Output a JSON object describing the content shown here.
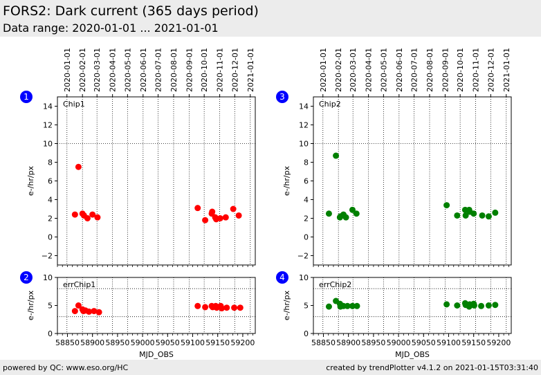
{
  "header": {
    "title": "FORS2: Dark current (365 days period)",
    "subtitle": "Data range: 2020-01-01 ... 2021-01-01"
  },
  "footer": {
    "left": "powered by QC: www.eso.org/HC",
    "right": "created by trendPlotter v4.1.2 on 2021-01-15T03:31:40"
  },
  "colors": {
    "chip1": "#ff0000",
    "chip2": "#008000",
    "badge": "#0000ff",
    "header_bg": "#ececec"
  },
  "chart_data": [
    {
      "type": "scatter",
      "badge": "1",
      "label": "Chip1",
      "ylabel": "e-/hr/px",
      "xlabel": "",
      "color": "#ff0000",
      "xlim": [
        58830,
        59225
      ],
      "ylim": [
        -3,
        15
      ],
      "yticks": [
        -2,
        0,
        2,
        4,
        6,
        8,
        10,
        12,
        14
      ],
      "reference_lines": [
        10
      ],
      "top_axis_dates": [
        "2020-01-01",
        "2020-02-01",
        "2020-03-01",
        "2020-04-01",
        "2020-05-01",
        "2020-06-01",
        "2020-07-01",
        "2020-08-01",
        "2020-09-01",
        "2020-10-01",
        "2020-11-01",
        "2020-12-01",
        "2021-01-01"
      ],
      "top_axis_mjd": [
        58849,
        58880,
        58909,
        58940,
        58970,
        59001,
        59031,
        59062,
        59093,
        59123,
        59154,
        59184,
        59215
      ],
      "points": [
        [
          58865,
          2.4
        ],
        [
          58872,
          7.5
        ],
        [
          58880,
          2.5
        ],
        [
          58883,
          2.3
        ],
        [
          58890,
          2.0
        ],
        [
          58900,
          2.4
        ],
        [
          58910,
          2.1
        ],
        [
          59110,
          3.1
        ],
        [
          59125,
          1.8
        ],
        [
          59138,
          2.5
        ],
        [
          59139,
          2.7
        ],
        [
          59145,
          2.1
        ],
        [
          59147,
          1.9
        ],
        [
          59155,
          2.0
        ],
        [
          59166,
          2.1
        ],
        [
          59181,
          3.0
        ],
        [
          59192,
          2.3
        ]
      ]
    },
    {
      "type": "scatter",
      "badge": "2",
      "label": "errChip1",
      "ylabel": "e-/hr/px",
      "xlabel": "MJD_OBS",
      "color": "#ff0000",
      "xlim": [
        58830,
        59225
      ],
      "ylim": [
        0,
        10
      ],
      "yticks": [
        0,
        5,
        10
      ],
      "reference_lines": [
        3,
        8
      ],
      "xticks": [
        58850,
        58900,
        58950,
        59000,
        59050,
        59100,
        59150,
        59200
      ],
      "xtick_labels": [
        "58850",
        "58900",
        "58950",
        "59000",
        "59050",
        "59100",
        "59150",
        "59200"
      ],
      "points": [
        [
          58865,
          4.0
        ],
        [
          58872,
          5.0
        ],
        [
          58880,
          4.3
        ],
        [
          58882,
          4.0
        ],
        [
          58886,
          4.1
        ],
        [
          58893,
          3.9
        ],
        [
          58903,
          4.0
        ],
        [
          58913,
          3.8
        ],
        [
          59110,
          4.9
        ],
        [
          59125,
          4.7
        ],
        [
          59138,
          4.9
        ],
        [
          59140,
          4.7
        ],
        [
          59146,
          4.9
        ],
        [
          59148,
          4.6
        ],
        [
          59156,
          4.9
        ],
        [
          59158,
          4.5
        ],
        [
          59168,
          4.6
        ],
        [
          59183,
          4.6
        ],
        [
          59195,
          4.6
        ]
      ]
    },
    {
      "type": "scatter",
      "badge": "3",
      "label": "Chip2",
      "ylabel": "e-/hr/px",
      "xlabel": "",
      "color": "#008000",
      "xlim": [
        58830,
        59225
      ],
      "ylim": [
        -3,
        15
      ],
      "yticks": [
        -2,
        0,
        2,
        4,
        6,
        8,
        10,
        12,
        14
      ],
      "reference_lines": [
        10
      ],
      "top_axis_dates": [
        "2020-01-01",
        "2020-02-01",
        "2020-03-01",
        "2020-04-01",
        "2020-05-01",
        "2020-06-01",
        "2020-07-01",
        "2020-08-01",
        "2020-09-01",
        "2020-10-01",
        "2020-11-01",
        "2020-12-01",
        "2021-01-01"
      ],
      "top_axis_mjd": [
        58849,
        58880,
        58909,
        58940,
        58970,
        59001,
        59031,
        59062,
        59093,
        59123,
        59154,
        59184,
        59215
      ],
      "points": [
        [
          58861,
          2.5
        ],
        [
          58875,
          8.7
        ],
        [
          58883,
          2.1
        ],
        [
          58884,
          2.2
        ],
        [
          58890,
          2.4
        ],
        [
          58895,
          2.1
        ],
        [
          58908,
          2.9
        ],
        [
          58916,
          2.5
        ],
        [
          59096,
          3.4
        ],
        [
          59117,
          2.3
        ],
        [
          59133,
          2.9
        ],
        [
          59134,
          2.3
        ],
        [
          59141,
          2.9
        ],
        [
          59142,
          2.7
        ],
        [
          59150,
          2.5
        ],
        [
          59167,
          2.3
        ],
        [
          59180,
          2.2
        ],
        [
          59193,
          2.6
        ]
      ]
    },
    {
      "type": "scatter",
      "badge": "4",
      "label": "errChip2",
      "ylabel": "e-/hr/px",
      "xlabel": "MJD_OBS",
      "color": "#008000",
      "xlim": [
        58830,
        59225
      ],
      "ylim": [
        0,
        10
      ],
      "yticks": [
        0,
        5,
        10
      ],
      "reference_lines": [
        3,
        8
      ],
      "xticks": [
        58850,
        58900,
        58950,
        59000,
        59050,
        59100,
        59150,
        59200
      ],
      "xtick_labels": [
        "58850",
        "58900",
        "58950",
        "59000",
        "59050",
        "59100",
        "59150",
        "59200"
      ],
      "points": [
        [
          58861,
          4.8
        ],
        [
          58875,
          5.8
        ],
        [
          58883,
          5.3
        ],
        [
          58884,
          4.8
        ],
        [
          58890,
          4.9
        ],
        [
          58898,
          4.9
        ],
        [
          58908,
          4.9
        ],
        [
          58917,
          4.9
        ],
        [
          59096,
          5.2
        ],
        [
          59117,
          5.0
        ],
        [
          59133,
          5.4
        ],
        [
          59134,
          5.1
        ],
        [
          59140,
          5.0
        ],
        [
          59141,
          4.8
        ],
        [
          59142,
          5.2
        ],
        [
          59150,
          5.3
        ],
        [
          59151,
          5.0
        ],
        [
          59165,
          4.9
        ],
        [
          59180,
          5.0
        ],
        [
          59193,
          5.1
        ]
      ]
    }
  ]
}
